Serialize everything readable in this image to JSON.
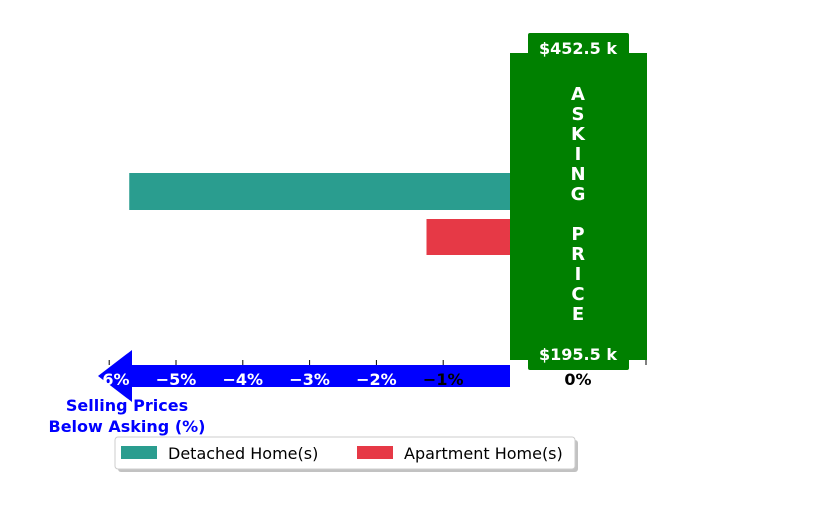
{
  "chart_data": {
    "type": "bar",
    "orientation": "horizontal",
    "series": [
      {
        "name": "Detached Home(s)",
        "value": -5.7,
        "color": "#2a9d8f"
      },
      {
        "name": "Apartment Home(s)",
        "value": -1.25,
        "color": "#e63946"
      }
    ],
    "xlim": [
      -7,
      1
    ],
    "xticks": [
      {
        "value": -6,
        "label": "−6%"
      },
      {
        "value": -5,
        "label": "−5%"
      },
      {
        "value": -4,
        "label": "−4%"
      },
      {
        "value": -3,
        "label": "−3%"
      },
      {
        "value": -2,
        "label": "−2%"
      },
      {
        "value": -1,
        "label": "−1%"
      },
      {
        "value": 0,
        "label": "0%"
      }
    ],
    "arrow_label_line1": "Selling Prices",
    "arrow_label_line2": "Below Asking (%)",
    "asking_price": {
      "top_label": "$452.5 k",
      "bottom_label": "$195.5 k",
      "letters": [
        "A",
        "S",
        "K",
        "I",
        "N",
        "G",
        "",
        "P",
        "R",
        "I",
        "C",
        "E"
      ],
      "color": "#008000"
    },
    "arrow_color": "#0000ff",
    "legend": {
      "placement": "bottom-left"
    }
  }
}
